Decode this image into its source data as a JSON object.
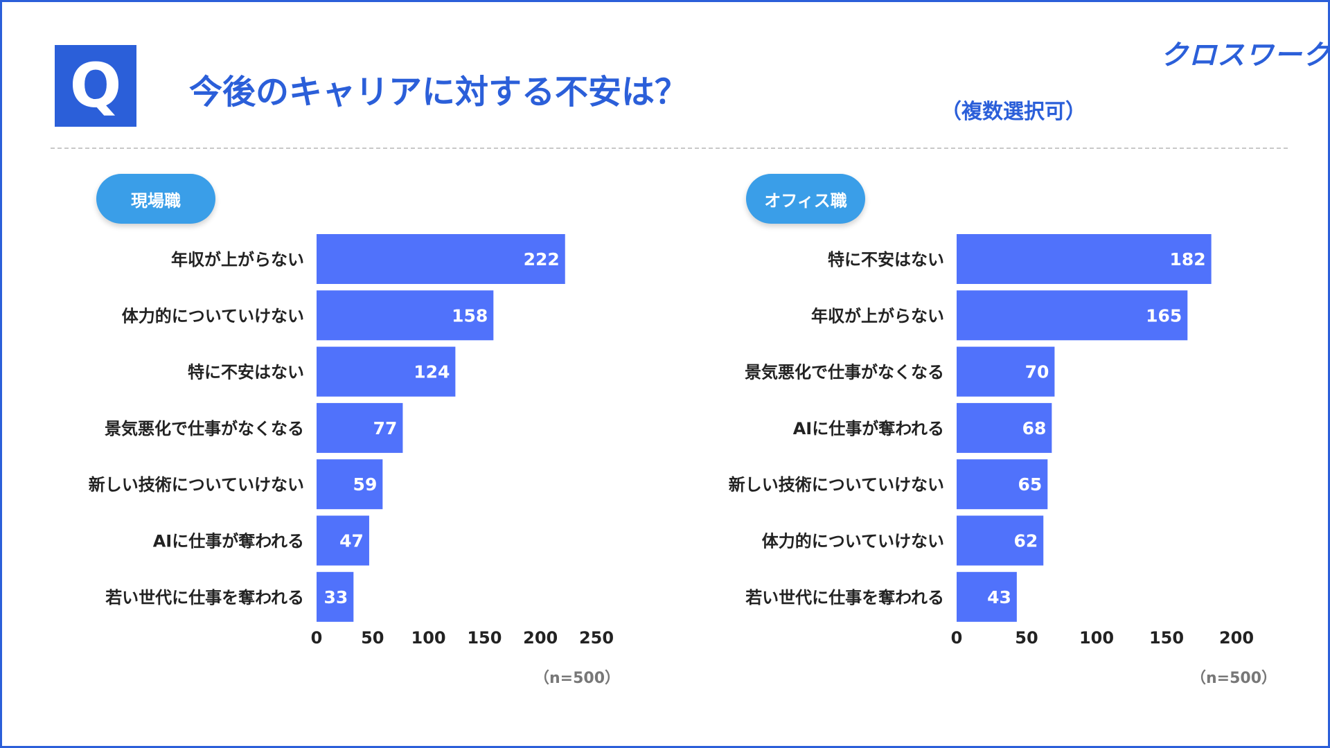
{
  "header": {
    "q_mark": "Q",
    "title": "今後のキャリアに対する不安は？",
    "subtitle": "（複数選択可）",
    "logo": "クロスワーク"
  },
  "colors": {
    "accent": "#2b5fd9",
    "bar": "#5072fb",
    "pill": "#3a9ee8",
    "label": "#222222",
    "note": "#777777"
  },
  "chart_data": [
    {
      "type": "bar",
      "orientation": "horizontal",
      "group_label": "現場職",
      "categories": [
        "年収が上がらない",
        "体力的についていけない",
        "特に不安はない",
        "景気悪化で仕事がなくなる",
        "新しい技術についていけない",
        "AIに仕事が奪われる",
        "若い世代に仕事を奪われる"
      ],
      "values": [
        222,
        158,
        124,
        77,
        59,
        47,
        33
      ],
      "xlim": [
        0,
        250
      ],
      "xticks": [
        0,
        50,
        100,
        150,
        200,
        250
      ],
      "xtick_labels": [
        "0",
        "50",
        "100",
        "150",
        "200",
        "250"
      ],
      "note": "（n=500）"
    },
    {
      "type": "bar",
      "orientation": "horizontal",
      "group_label": "オフィス職",
      "categories": [
        "特に不安はない",
        "年収が上がらない",
        "景気悪化で仕事がなくなる",
        "AIに仕事が奪われる",
        "新しい技術についていけない",
        "体力的についていけない",
        "若い世代に仕事を奪われる"
      ],
      "values": [
        182,
        165,
        70,
        68,
        65,
        62,
        43
      ],
      "xlim": [
        0,
        200
      ],
      "xticks": [
        0,
        50,
        100,
        150,
        200
      ],
      "xtick_labels": [
        "0",
        "50",
        "100",
        "150",
        "200"
      ],
      "note": "（n=500）"
    }
  ]
}
